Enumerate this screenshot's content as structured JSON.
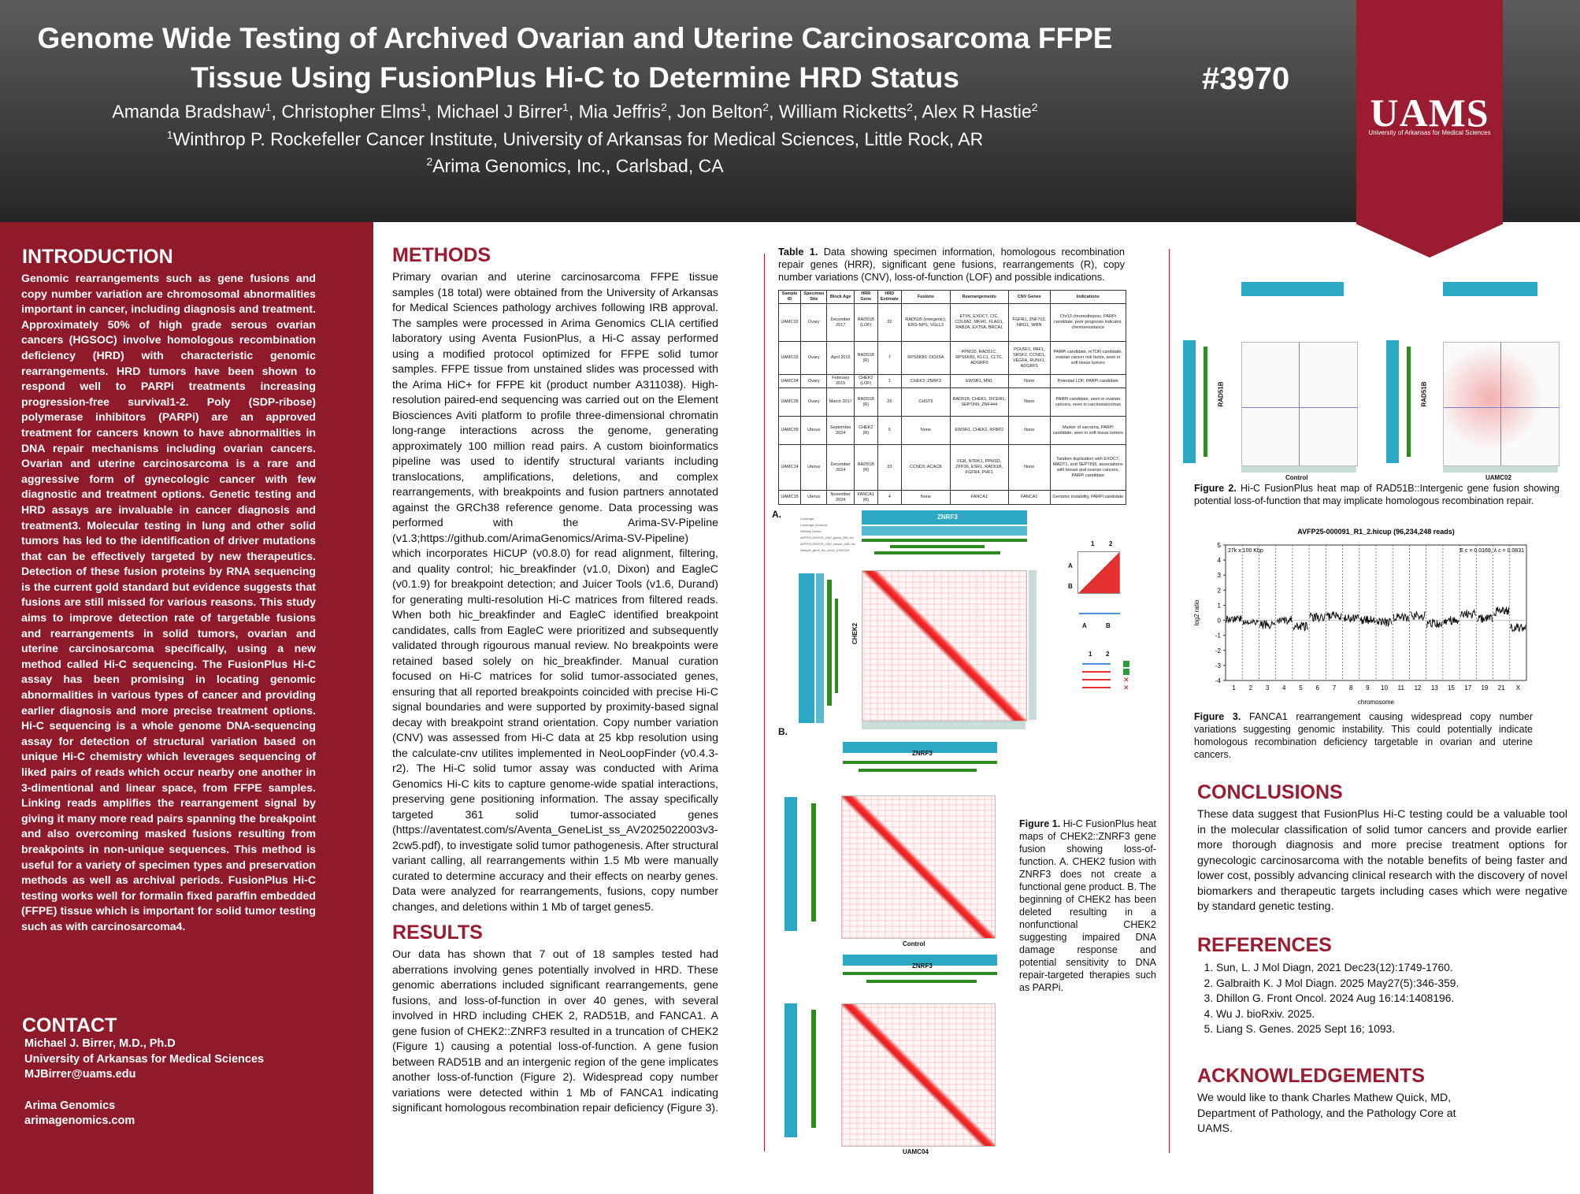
{
  "header": {
    "title_line1": "Genome Wide Testing of Archived Ovarian and Uterine Carcinosarcoma FFPE",
    "title_line2": "Tissue Using FusionPlus Hi-C to Determine HRD Status",
    "authors": [
      {
        "name": "Amanda Bradshaw",
        "aff": "1"
      },
      {
        "name": "Christopher Elms",
        "aff": "1"
      },
      {
        "name": "Michael J Birrer",
        "aff": "1"
      },
      {
        "name": "Mia Jeffris",
        "aff": "2"
      },
      {
        "name": "Jon Belton",
        "aff": "2"
      },
      {
        "name": "William Ricketts",
        "aff": "2"
      },
      {
        "name": "Alex R Hastie",
        "aff": "2"
      }
    ],
    "affiliation1": "Winthrop P. Rockefeller Cancer Institute, University of Arkansas for Medical Sciences, Little Rock, AR",
    "affiliation2": "Arima Genomics, Inc., Carlsbad, CA",
    "poster_number": "#3970",
    "logo_text": "UAMS",
    "logo_subtext": "University of Arkansas for Medical Sciences"
  },
  "introduction": {
    "heading": "INTRODUCTION",
    "text": "Genomic rearrangements such as gene fusions and copy number variation are chromosomal abnormalities important in cancer, including diagnosis and treatment. Approximately 50% of high grade serous ovarian cancers (HGSOC) involve homologous recombination deficiency (HRD) with characteristic genomic rearrangements. HRD tumors have been shown to respond well to PARPi treatments increasing progression-free survival1-2. Poly (SDP-ribose) polymerase inhibitors (PARPi) are an approved treatment for cancers known to have abnormalities in DNA repair mechanisms including ovarian cancers. Ovarian and uterine carcinosarcoma is a rare and aggressive form of gynecologic cancer with few diagnostic and treatment options. Genetic testing and HRD assays are invaluable in cancer diagnosis and treatment3. Molecular testing in lung and other solid tumors has led to the identification of driver mutations that can be effectively targeted by new therapeutics. Detection of these fusion proteins by RNA sequencing is the current gold standard but evidence suggests that fusions are still missed for various reasons. This study aims to improve detection rate of targetable fusions and rearrangements in solid tumors, ovarian and uterine carcinosarcoma specifically, using a new method called Hi-C sequencing. The FusionPlus Hi-C assay has been promising in locating genomic abnormalities in various types of cancer and providing earlier diagnosis and more precise treatment options. Hi-C sequencing is a whole genome DNA-sequencing assay for detection of structural variation based on unique Hi-C chemistry which leverages sequencing of liked pairs of reads which occur nearby one another in 3-dimentional and linear space, from FFPE samples. Linking reads amplifies the rearrangement signal by giving it many more read pairs spanning the breakpoint and also overcoming masked fusions resulting from breakpoints in non-unique sequences. This method is useful for a variety of specimen types and preservation methods as well as archival periods. FusionPlus Hi-C testing works well for formalin fixed paraffin embedded (FFPE) tissue which is important for solid tumor testing such as with carcinosarcoma4."
  },
  "contact": {
    "heading": "CONTACT",
    "name": "Michael J. Birrer, M.D., Ph.D",
    "institution": "University of Arkansas for Medical Sciences",
    "email": "MJBirrer@uams.edu",
    "company": "Arima Genomics",
    "website": "arimagenomics.com"
  },
  "methods": {
    "heading": "METHODS",
    "text": "Primary ovarian and uterine carcinosarcoma FFPE tissue samples (18 total) were obtained from the University of Arkansas for Medical Sciences pathology archives following IRB approval. The samples were processed in Arima Genomics CLIA certified laboratory using Aventa FusionPlus, a Hi-C assay performed using a modified protocol optimized for FFPE solid tumor samples. FFPE tissue from unstained slides was processed with the Arima HiC+ for FFPE kit (product number A311038). High-resolution paired-end sequencing was carried out on the Element Biosciences Aviti platform to profile three-dimensional chromatin long-range interactions across the genome, generating approximately 100 million read pairs. A custom bioinformatics pipeline was used to identify structural variants including translocations, amplifications, deletions, and complex rearrangements, with breakpoints and fusion partners annotated against the GRCh38 reference genome. Data processing was performed with the Arima-SV-Pipeline (v1.3;https://github.com/ArimaGenomics/Arima-SV-Pipeline) which incorporates HiCUP (v0.8.0) for read alignment, filtering, and quality control; hic_breakfinder (v1.0, Dixon) and EagleC (v0.1.9) for breakpoint detection; and Juicer Tools (v1.6, Durand) for generating multi-resolution Hi-C matrices from filtered reads. When both hic_breakfinder and EagleC identified breakpoint candidates, calls from EagleC were prioritized and subsequently validated through rigourous manual review. No breakpoints were retained based solely on hic_breakfinder. Manual curation focused on Hi-C matrices for solid tumor-associated genes, ensuring that all reported breakpoints coincided with precise Hi-C signal boundaries and were supported by proximity-based signal decay with breakpoint strand orientation. Copy number variation (CNV) was assessed from Hi-C data at 25 kbp resolution using the calculate-cnv utilites implemented in NeoLoopFinder (v0.4.3-r2). The Hi-C solid tumor assay was conducted with Arima Genomics Hi-C kits to capture genome-wide spatial interactions, preserving gene positioning information. The assay specifically targeted 361 solid tumor-associated genes (https://aventatest.com/s/Aventa_GeneList_ss_AV2025022003v3-2cw5.pdf), to investigate solid tumor pathogenesis. After structural variant calling, all rearrangements within 1.5 Mb were manually curated to determine accuracy and their effects on nearby genes. Data were analyzed for rearrangements, fusions, copy number changes, and deletions within 1 Mb of target genes5."
  },
  "results": {
    "heading": "RESULTS",
    "text": "Our data has shown that 7 out of 18 samples tested had aberrations involving genes potentially involved in HRD. These genomic aberrations included significant rearrangements, gene fusions, and loss-of-function in over 40 genes, with several involved in HRD including CHEK 2, RAD51B, and FANCA1. A gene fusion of CHEK2::ZNRF3 resulted in a truncation of CHEK2 (Figure 1) causing a potential loss-of-function. A gene fusion between RAD51B and an intergenic region of the gene implicates another loss-of-function (Figure 2). Widespread copy number variations were detected within 1 Mb of FANCA1 indicating significant homologous recombination repair deficiency (Figure 3)."
  },
  "table1": {
    "caption_label": "Table 1.",
    "caption": "Data showing specimen information, homologous recombination repair genes (HRR), significant gene fusions, rearrangements (R), copy number variations (CNV), loss-of-function (LOF) and possible indications.",
    "headers": [
      "Sample ID",
      "Specimen Site",
      "Block Age",
      "HRR Gene",
      "HRD Estimate",
      "Fusions",
      "Rearrangements",
      "CNV Genes",
      "Indications"
    ],
    "rows": [
      [
        "UAMC02",
        "Ovary",
        "December 2017",
        "RAD51B (LOF)",
        "32",
        "RAD51B (intergenic), ERG-NPS, VGLL3",
        "ETV6, EXOC7, CIC, COL6A2, MKI41, FLAG1, RAB2A, EXT5A, BRCA1",
        "FGFR1, ZNF703, NRG1, WRN",
        "Chr13 chromothripsis, PARPi candidate, poor prognosis indicator, chemoresistance"
      ],
      [
        "UAMC03",
        "Ovary",
        "April 2015",
        "RAD51B (R)",
        "7",
        "RPS6KB1::DDX5A",
        "PPM1D, RAD51C, RPS6KB1, KLC1, CLTC, ADGRF5",
        "POU5F1, PAF1, SRSF2, CCND1, VEGFA, RUNX1, ADGRF5",
        "PARPi candidate, mTOR candidate, ovarian cancer risk factor, seen in soft tissue tumors"
      ],
      [
        "UAMC04",
        "Ovary",
        "February 2015",
        "CHEK2 (LOF)",
        "1",
        "CHEK2::ZNRF3",
        "EWSR1, MN1",
        "None",
        "Potential LOF, PARPi candidate"
      ],
      [
        "UAMC05",
        "Ovary",
        "March 2017",
        "RAD51B (R)",
        "26",
        "CHST9",
        "RAD51B, CHEK1, DICER1, SEPTIN9, ZNF444",
        "None",
        "PARPi candidate, seen in ovarian cancers, seen in carcinosarcomas"
      ],
      [
        "UAMC09",
        "Uterus",
        "September 2024",
        "CHEK2 (R)",
        "5",
        "None",
        "EWSR1, CHEK2, RFBP2",
        "None",
        "Marker of sarcoma, PARPi candidate, seen in soft tissue tumors"
      ],
      [
        "UAMC14",
        "Uterus",
        "December 2024",
        "RAD51B (R)",
        "33",
        "CCND3::ACACB",
        "FGB, NTRK1, PPM1D, ZFP36, ESR1, RAD51B, FGFR4, PHF1",
        "None",
        "Tandem duplication with EXOC7, MADT1, and SEPTIN9, associations with breast and ovarian cancers, PARPi candidate"
      ],
      [
        "UAMC15",
        "Uterus",
        "November 2024",
        "FANCA1 (R)",
        "4",
        "None",
        "FANCA1",
        "FANCA1",
        "Genomic instability, PARPi candidate"
      ]
    ]
  },
  "figure1": {
    "label_a": "A.",
    "label_b": "B.",
    "gene_top": "ZNRF3",
    "gene_side": "CHEK2",
    "track_labels": [
      "Coverage",
      "Coverage (Control)",
      "RefSeq Genes",
      "AVFP25-000075_CNV_gains_DEL.hic",
      "AVFP25-000075_CNV_losses_DEL.hic",
      "Sample_gene_hic_chr11_ENSG00"
    ],
    "control_label": "Control",
    "sample_label": "UAMC04",
    "schematic_cols": [
      "1",
      "2"
    ],
    "schematic_rows": [
      "A",
      "B"
    ],
    "caption_label": "Figure 1.",
    "caption": "Hi-C FusionPlus heat maps of CHEK2::ZNRF3 gene fusion showing loss-of-function. A. CHEK2 fusion with ZNRF3 does not create a functional gene product. B. The beginning of CHEK2 has been deleted resulting in a nonfunctional CHEK2 suggesting impaired DNA damage response and potential sensitivity to DNA repair-targeted therapies such as PARPi."
  },
  "figure2": {
    "side_label": "RAD51B",
    "control_label": "Control",
    "sample_label": "UAMC02",
    "caption_label": "Figure 2.",
    "caption": "Hi-C FusionPlus heat map of RAD51B::Intergenic gene fusion showing potential loss-of-function that may implicate homologous recombination repair."
  },
  "figure3": {
    "caption_label": "Figure 3.",
    "caption": "FANCA1 rearrangement causing widespread copy number variations suggesting genomic instability. This could potentially indicate homologous recombination deficiency targetable in ovarian and uterine cancers."
  },
  "chart_data": {
    "type": "scatter",
    "title": "AVFP25-000091_R1_2.hicup (96,234,248 reads)",
    "subtitle_left": "27k x 100 Kbp",
    "subtitle_right": "E c = 0.0169, λ c = 0.0831",
    "xlabel": "chromosome",
    "ylabel": "log2 ratio",
    "ylim": [
      -4,
      5
    ],
    "yticks": [
      5,
      4,
      3,
      2,
      1,
      0,
      -1,
      -2,
      -3,
      -4
    ],
    "x_ticks": [
      "1",
      "2",
      "3",
      "4",
      "5",
      "6",
      "7",
      "8",
      "9",
      "10",
      "11",
      "12",
      "13",
      "15",
      "17",
      "19",
      "21",
      "X"
    ],
    "series": [
      {
        "segments": [
          {
            "chrom": "1",
            "level": 0.1
          },
          {
            "chrom": "2",
            "level": -0.1
          },
          {
            "chrom": "3",
            "level": -0.3
          },
          {
            "chrom": "4",
            "level": 0.0
          },
          {
            "chrom": "5",
            "level": -0.4
          },
          {
            "chrom": "6",
            "level": 0.2
          },
          {
            "chrom": "7",
            "level": 0.3
          },
          {
            "chrom": "8",
            "level": 0.1
          },
          {
            "chrom": "9",
            "level": 0.0
          },
          {
            "chrom": "10",
            "level": -0.1
          },
          {
            "chrom": "11",
            "level": 0.2
          },
          {
            "chrom": "12",
            "level": 0.3
          },
          {
            "chrom": "13",
            "level": -0.2
          },
          {
            "chrom": "15",
            "level": 0.0
          },
          {
            "chrom": "17",
            "level": 0.4
          },
          {
            "chrom": "19",
            "level": 0.1
          },
          {
            "chrom": "21",
            "level": 0.6
          },
          {
            "chrom": "X",
            "level": -0.5
          }
        ]
      }
    ]
  },
  "conclusions": {
    "heading": "CONCLUSIONS",
    "text": "These data suggest that FusionPlus Hi-C testing could be a valuable tool in the molecular classification of solid tumor cancers and provide earlier more thorough diagnosis and more precise treatment options for gynecologic carcinosarcoma with the notable benefits of being faster and lower cost, possibly advancing clinical research with the discovery of novel biomarkers and therapeutic targets including cases which were negative by standard genetic testing."
  },
  "references": {
    "heading": "REFERENCES",
    "items": [
      "Sun, L. J Mol Diagn, 2021 Dec23(12):1749-1760.",
      "Galbraith K. J Mol Diagn. 2025 May27(5):346-359.",
      "Dhillon G. Front Oncol. 2024 Aug 16:14:1408196.",
      "Wu J. bioRxiv. 2025.",
      "Liang S. Genes. 2025 Sept 16; 1093."
    ]
  },
  "acknowledgements": {
    "heading": "ACKNOWLEDGEMENTS",
    "text": "We would like to thank Charles Mathew Quick, MD, Department of Pathology, and the Pathology Core at UAMS."
  },
  "colors": {
    "accent": "#9b1b30",
    "left_panel": "#8e1a2a",
    "header_top": "#5c5c5c",
    "header_bottom": "#262626",
    "heatmap": "#e02020",
    "track_teal": "#2aa8c4",
    "track_green": "#2e8b22"
  }
}
